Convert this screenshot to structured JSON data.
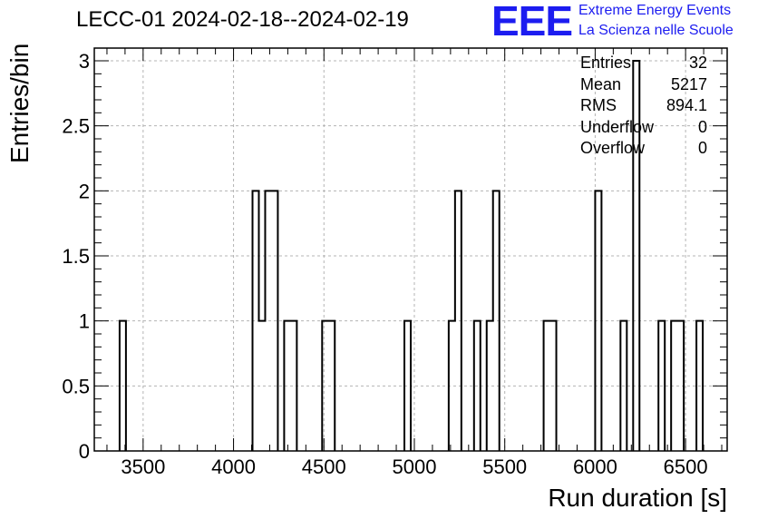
{
  "chart_data": {
    "type": "bar",
    "title": "LECC-01 2024-02-18--2024-02-19",
    "xlabel": "Run duration [s]",
    "ylabel": "Entries/bin",
    "xlim": [
      3230,
      6730
    ],
    "ylim": [
      0,
      3.0
    ],
    "grid": true,
    "x_ticks": [
      3500,
      4000,
      4500,
      5000,
      5500,
      6000,
      6500
    ],
    "y_ticks": [
      0,
      0.5,
      1,
      1.5,
      2,
      2.5,
      3
    ],
    "y_tick_labels": [
      "0",
      "0.5",
      "1",
      "1.5",
      "2",
      "2.5",
      "3"
    ],
    "bin_width": 35,
    "bins": [
      {
        "x": 3370,
        "value": 1
      },
      {
        "x": 4105,
        "value": 2
      },
      {
        "x": 4140,
        "value": 1
      },
      {
        "x": 4175,
        "value": 2
      },
      {
        "x": 4210,
        "value": 2
      },
      {
        "x": 4280,
        "value": 1
      },
      {
        "x": 4315,
        "value": 1
      },
      {
        "x": 4490,
        "value": 1
      },
      {
        "x": 4525,
        "value": 1
      },
      {
        "x": 4945,
        "value": 1
      },
      {
        "x": 5190,
        "value": 1
      },
      {
        "x": 5225,
        "value": 2
      },
      {
        "x": 5330,
        "value": 1
      },
      {
        "x": 5400,
        "value": 1
      },
      {
        "x": 5435,
        "value": 2
      },
      {
        "x": 5715,
        "value": 1
      },
      {
        "x": 5750,
        "value": 1
      },
      {
        "x": 6000,
        "value": 2
      },
      {
        "x": 6140,
        "value": 1
      },
      {
        "x": 6210,
        "value": 3
      },
      {
        "x": 6350,
        "value": 1
      },
      {
        "x": 6420,
        "value": 1
      },
      {
        "x": 6455,
        "value": 1
      },
      {
        "x": 6560,
        "value": 1
      }
    ]
  },
  "stats": [
    {
      "label": "Entries",
      "value": "32"
    },
    {
      "label": "Mean",
      "value": "5217"
    },
    {
      "label": "RMS",
      "value": "894.1"
    },
    {
      "label": "Underflow",
      "value": "0"
    },
    {
      "label": "Overflow",
      "value": "0"
    }
  ],
  "logo": {
    "mark": "EEE",
    "line1": "Extreme Energy Events",
    "line2": "La Scienza nelle Scuole"
  }
}
